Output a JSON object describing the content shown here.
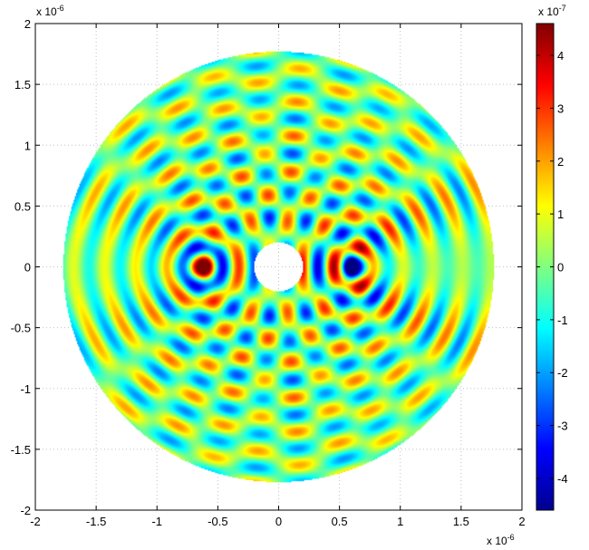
{
  "chart_data": {
    "type": "heatmap",
    "title": "",
    "xlabel": "",
    "ylabel": "",
    "x_exponent_label": "x 10",
    "x_exponent_power": "-6",
    "y_exponent_label": "x 10",
    "y_exponent_power": "-6",
    "xlim": [
      -2,
      2
    ],
    "ylim": [
      -2,
      2
    ],
    "x_ticks": [
      -2,
      -1.5,
      -1,
      -0.5,
      0,
      0.5,
      1,
      1.5,
      2
    ],
    "x_tick_labels": [
      "-2",
      "-1.5",
      "-1",
      "-0.5",
      "0",
      "0.5",
      "1",
      "1.5",
      "2"
    ],
    "y_ticks": [
      -2,
      -1.5,
      -1,
      -0.5,
      0,
      0.5,
      1,
      1.5,
      2
    ],
    "y_tick_labels": [
      "-2",
      "-1.5",
      "-1",
      "-0.5",
      "0",
      "0.5",
      "1",
      "1.5",
      "2"
    ],
    "grid": true,
    "domain": {
      "shape": "annulus",
      "center": [
        0,
        0
      ],
      "outer_radius": 1.77,
      "inner_radius": 0.2
    },
    "sources": [
      {
        "x": -0.63,
        "y": 0
      },
      {
        "x": 0.63,
        "y": 0
      }
    ],
    "colorbar": {
      "exponent_label": "x 10",
      "exponent_power": "-7",
      "range": [
        -4.6,
        4.6
      ],
      "ticks": [
        4,
        3,
        2,
        1,
        0,
        -1,
        -2,
        -3,
        -4
      ],
      "tick_labels": [
        "4",
        "3",
        "2",
        "1",
        "0",
        "-1",
        "-2",
        "-3",
        "-4"
      ],
      "colormap": "jet"
    }
  },
  "colors": {
    "axis": "#000000",
    "grid": "#c0c0c0",
    "background": "#ffffff"
  }
}
